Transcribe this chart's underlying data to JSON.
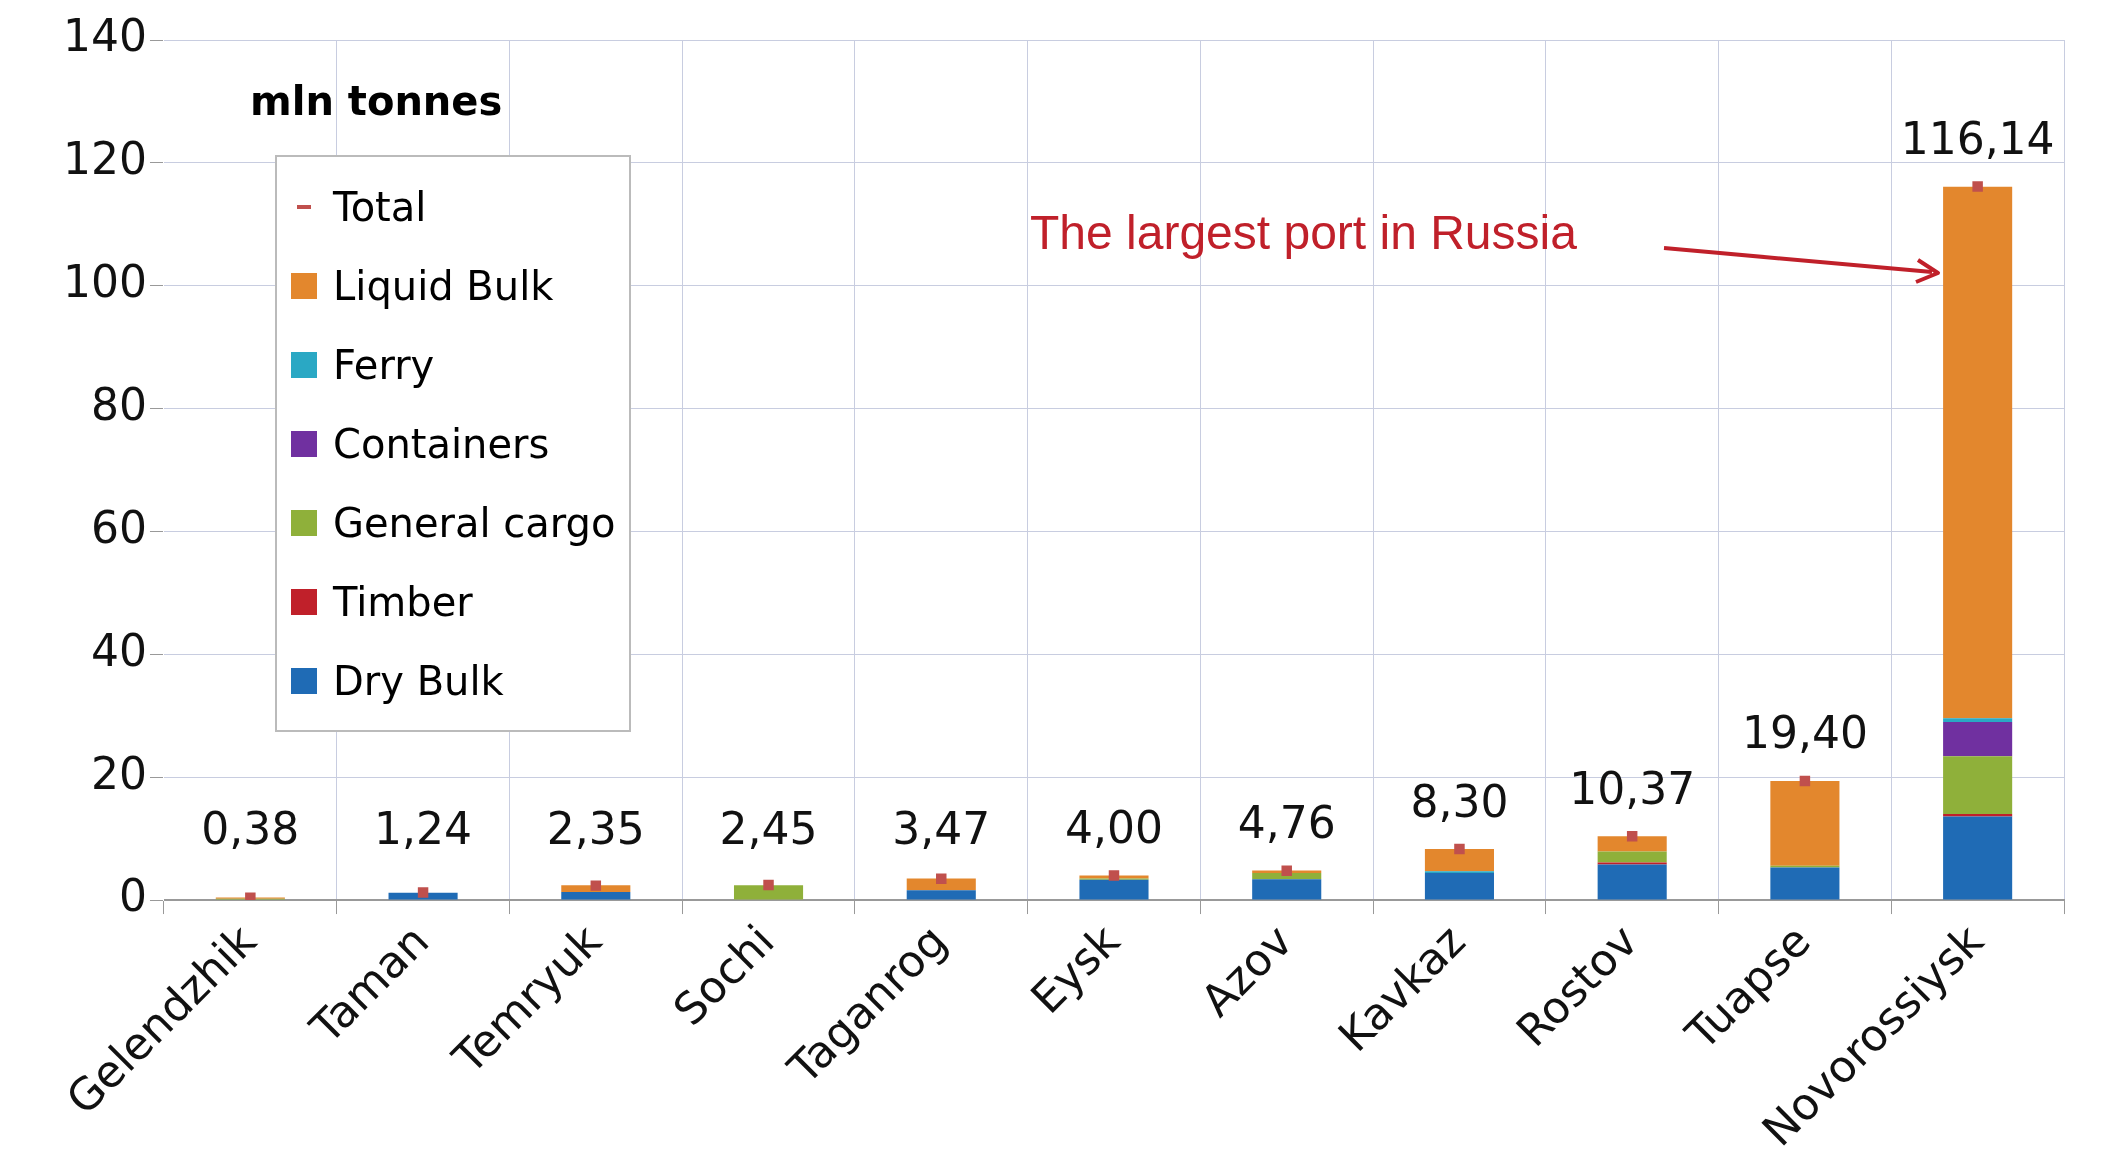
{
  "chart_data": {
    "type": "bar",
    "ylabel": "mln tonnes",
    "stacked": true,
    "categories": [
      "Gelendzhik",
      "Taman",
      "Temryuk",
      "Sochi",
      "Taganrog",
      "Eysk",
      "Azov",
      "Kavkaz",
      "Rostov",
      "Tuapse",
      "Novorossiysk"
    ],
    "ylim": [
      0,
      140
    ],
    "yticks": [
      0,
      20,
      40,
      60,
      80,
      100,
      120,
      140
    ],
    "grid": true,
    "legend": "top left",
    "series": [
      {
        "name": "Dry Bulk",
        "color": "#1f6bb5",
        "values": [
          null,
          1.2,
          1.3,
          null,
          1.6,
          3.3,
          3.4,
          4.4,
          5.8,
          5.3,
          13.6
        ]
      },
      {
        "name": "Timber",
        "color": "#c0202a",
        "values": [
          null,
          null,
          null,
          null,
          null,
          null,
          null,
          null,
          0.3,
          null,
          0.4
        ]
      },
      {
        "name": "General cargo",
        "color": "#8fb03a",
        "values": [
          0.2,
          null,
          null,
          2.4,
          null,
          0.2,
          1.0,
          null,
          1.8,
          0.3,
          9.4
        ]
      },
      {
        "name": "Containers",
        "color": "#7030a0",
        "values": [
          null,
          null,
          null,
          null,
          null,
          null,
          null,
          null,
          null,
          null,
          5.6
        ]
      },
      {
        "name": "Ferry",
        "color": "#2aa8c4",
        "values": [
          null,
          null,
          null,
          null,
          null,
          null,
          null,
          0.3,
          null,
          null,
          0.6
        ]
      },
      {
        "name": "Liquid Bulk",
        "color": "#e3872d",
        "values": [
          0.2,
          null,
          1.1,
          null,
          1.9,
          0.5,
          0.4,
          3.6,
          2.5,
          13.8,
          86.5
        ]
      },
      {
        "name": "Total",
        "type": "scatter",
        "marker": "square",
        "color": "#c0504d",
        "values": [
          0.38,
          1.24,
          2.35,
          2.45,
          3.47,
          4.0,
          4.76,
          8.3,
          10.37,
          19.4,
          116.14
        ],
        "value_labels": [
          "0,38",
          "1,24",
          "2,35",
          "2,45",
          "3,47",
          "4,00",
          "4,76",
          "8,30",
          "10,37",
          "19,40",
          "116,14"
        ]
      }
    ],
    "annotations": [
      "The largest port in Russia"
    ]
  }
}
